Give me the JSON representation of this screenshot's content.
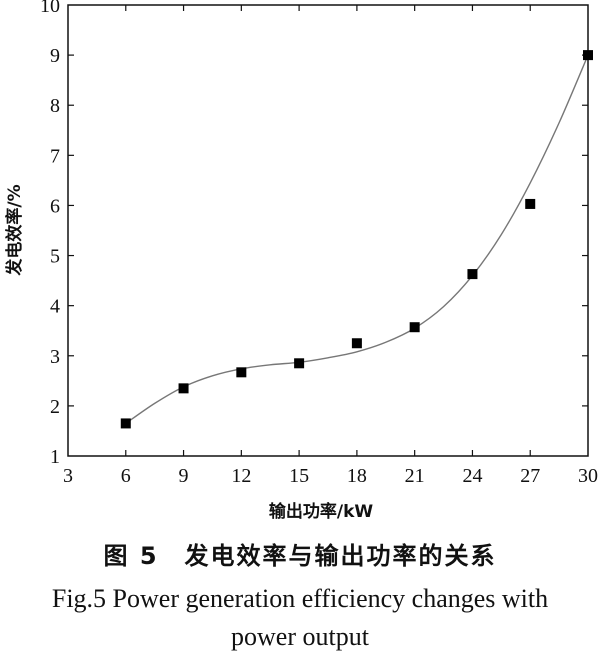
{
  "chart_data": {
    "type": "scatter",
    "xlabel": "输出功率/kW",
    "ylabel": "发电效率/%",
    "xlim": [
      3,
      30
    ],
    "ylim": [
      1,
      10
    ],
    "xticks": [
      3,
      6,
      9,
      12,
      15,
      18,
      21,
      24,
      27,
      30
    ],
    "yticks": [
      1,
      2,
      3,
      4,
      5,
      6,
      7,
      8,
      9,
      10
    ],
    "grid": false,
    "series": [
      {
        "marker": "square",
        "color": "#000000",
        "x": [
          6,
          9,
          12,
          15,
          18,
          21,
          24,
          27,
          30
        ],
        "y": [
          1.65,
          2.35,
          2.67,
          2.85,
          3.25,
          3.57,
          4.63,
          6.03,
          9.0
        ]
      }
    ],
    "fit_curve": {
      "color": "#777777",
      "x": [
        6,
        7.5,
        9,
        10.5,
        12,
        13.5,
        15,
        16.5,
        18,
        19.5,
        21,
        22.5,
        24,
        25.5,
        27,
        28.5,
        30
      ],
      "y": [
        1.65,
        2.05,
        2.38,
        2.6,
        2.74,
        2.82,
        2.87,
        2.96,
        3.08,
        3.27,
        3.55,
        3.98,
        4.6,
        5.42,
        6.45,
        7.65,
        9.0
      ]
    }
  },
  "caption": {
    "chinese": "图 5　发电效率与输出功率的关系",
    "english": "Fig.5 Power generation efficiency changes with power output"
  }
}
